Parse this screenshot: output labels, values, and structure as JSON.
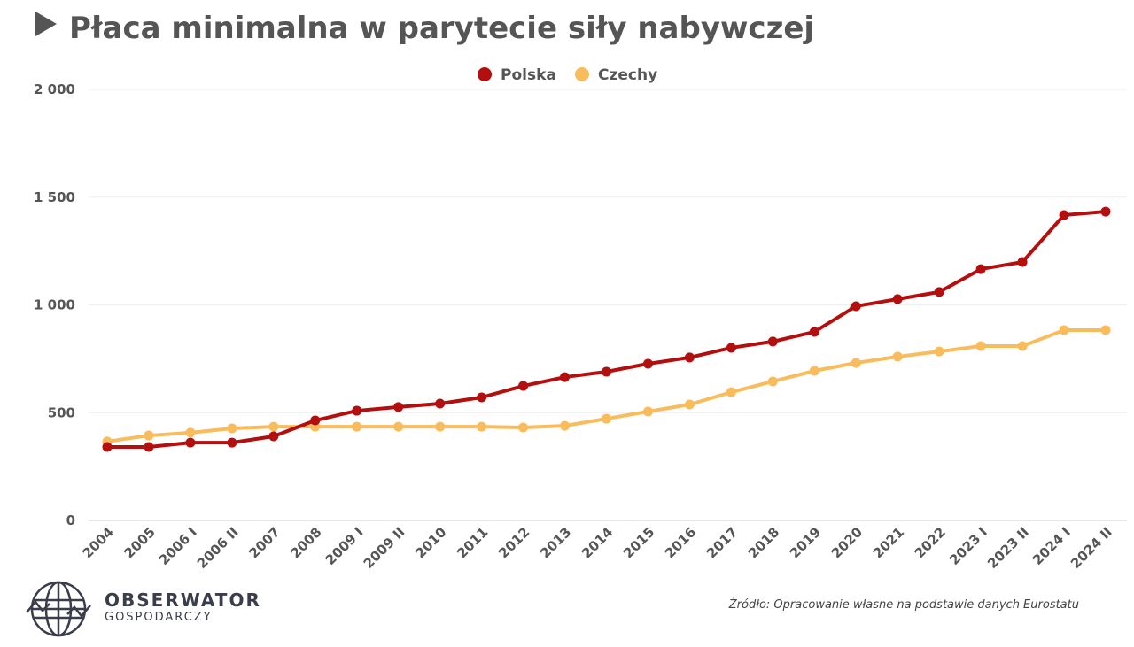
{
  "chart_data": {
    "type": "line",
    "title": "Płaca minimalna w parytecie siły nabywczej",
    "xlabel": "",
    "ylabel": "",
    "ylim": [
      0,
      2000
    ],
    "yticks": [
      0,
      500,
      1000,
      1500,
      2000
    ],
    "ytick_labels": [
      "0",
      "500",
      "1 000",
      "1 500",
      "2 000"
    ],
    "grid": true,
    "legend_position": "top-center",
    "categories": [
      "2004",
      "2005",
      "2006 I",
      "2006 II",
      "2007",
      "2008",
      "2009 I",
      "2009 II",
      "2010",
      "2011",
      "2012",
      "2013",
      "2014",
      "2015",
      "2016",
      "2017",
      "2018",
      "2019",
      "2020",
      "2021",
      "2022",
      "2023 I",
      "2023 II",
      "2024 I",
      "2024 II"
    ],
    "series": [
      {
        "name": "Polska",
        "color": "#b30f0f",
        "values": [
          341,
          341,
          361,
          361,
          390,
          464,
          509,
          526,
          542,
          571,
          624,
          665,
          690,
          727,
          756,
          801,
          830,
          875,
          994,
          1027,
          1060,
          1166,
          1199,
          1417,
          1433
        ]
      },
      {
        "name": "Czechy",
        "color": "#f9bc5d",
        "values": [
          366,
          394,
          407,
          427,
          435,
          435,
          435,
          435,
          435,
          435,
          431,
          439,
          472,
          505,
          538,
          595,
          645,
          694,
          731,
          760,
          784,
          809,
          809,
          883,
          883
        ]
      }
    ]
  },
  "source": "Źródło: Opracowanie własne na podstawie danych Eurostatu",
  "logo": {
    "name": "OBSERWATOR",
    "sub": "GOSPODARCZY"
  }
}
